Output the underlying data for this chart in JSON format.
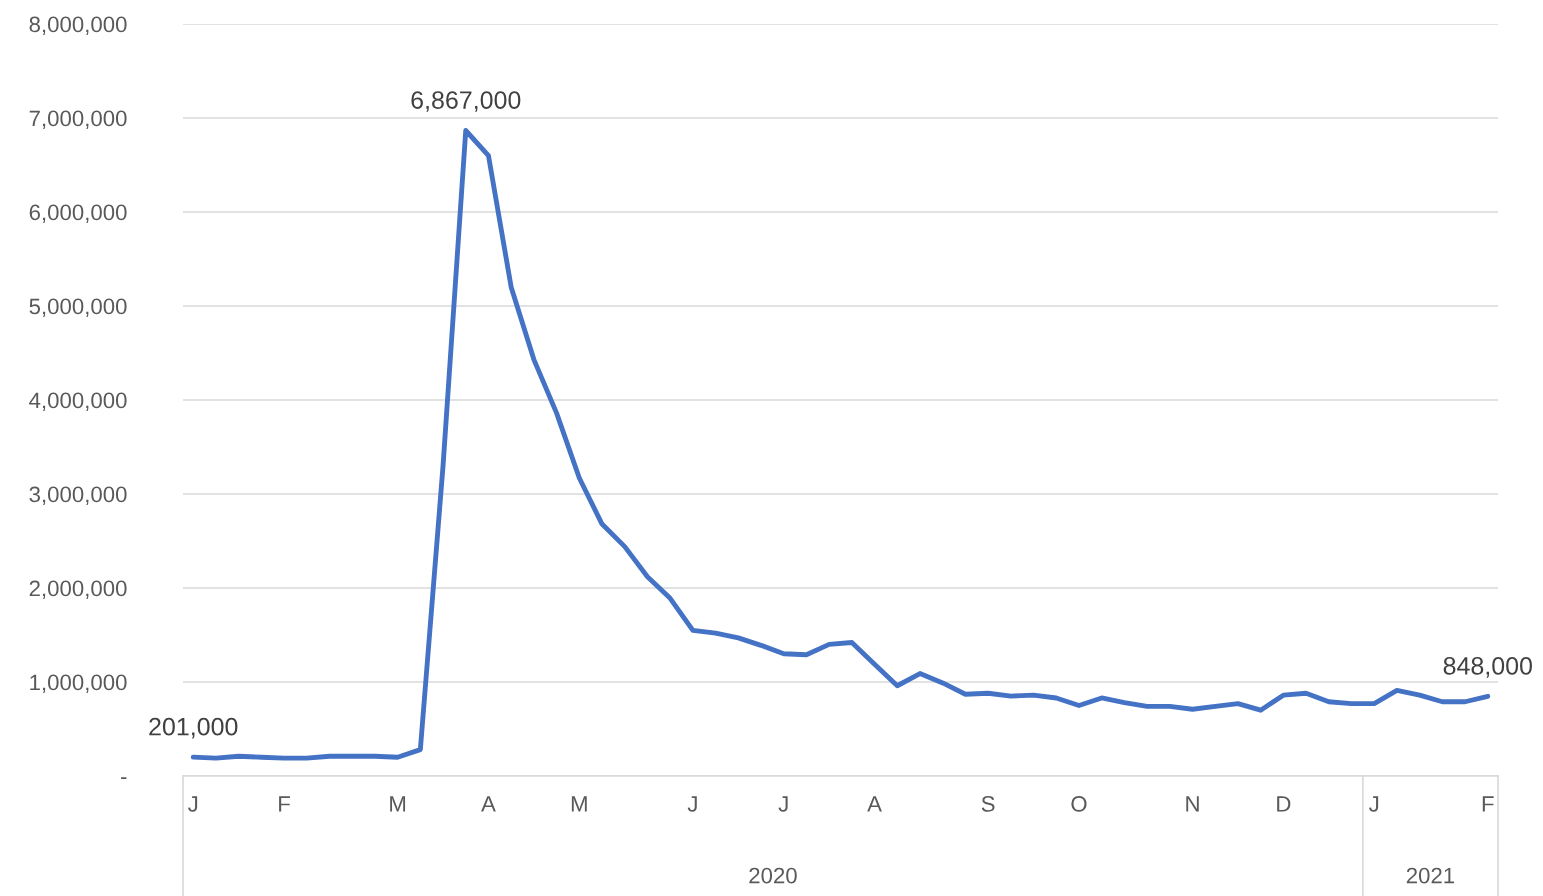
{
  "chart_data": {
    "type": "line",
    "color": "#4472c4",
    "categories": [
      "J",
      null,
      null,
      null,
      "F",
      null,
      null,
      null,
      null,
      "M",
      null,
      null,
      null,
      "A",
      null,
      null,
      null,
      "M",
      null,
      null,
      null,
      null,
      "J",
      null,
      null,
      null,
      "J",
      null,
      null,
      null,
      "A",
      null,
      null,
      null,
      null,
      "S",
      null,
      null,
      null,
      "O",
      null,
      null,
      null,
      null,
      "N",
      null,
      null,
      null,
      "D",
      null,
      null,
      null,
      "J",
      null,
      null,
      null,
      null,
      "F"
    ],
    "values": [
      201000,
      190000,
      210000,
      200000,
      190000,
      190000,
      210000,
      210000,
      210000,
      200000,
      280000,
      3300000,
      6867000,
      6600000,
      5200000,
      4430000,
      3860000,
      3170000,
      2680000,
      2440000,
      2120000,
      1890000,
      1550000,
      1520000,
      1470000,
      1390000,
      1300000,
      1290000,
      1400000,
      1420000,
      1190000,
      960000,
      1090000,
      990000,
      870000,
      880000,
      850000,
      860000,
      830000,
      750000,
      830000,
      780000,
      740000,
      740000,
      710000,
      740000,
      770000,
      700000,
      860000,
      880000,
      790000,
      770000,
      770000,
      910000,
      860000,
      790000,
      790000,
      848000
    ],
    "value_labels": [
      "201,000",
      null,
      null,
      null,
      null,
      null,
      null,
      null,
      null,
      null,
      null,
      null,
      "6,867,000",
      null,
      null,
      null,
      null,
      null,
      null,
      null,
      null,
      null,
      null,
      null,
      null,
      null,
      null,
      null,
      null,
      null,
      null,
      null,
      null,
      null,
      null,
      null,
      null,
      null,
      null,
      null,
      null,
      null,
      null,
      null,
      null,
      null,
      null,
      null,
      null,
      null,
      null,
      null,
      null,
      null,
      null,
      null,
      null,
      "848,000"
    ],
    "ylim": [
      0,
      8000000
    ],
    "yticks": [
      {
        "value": 0,
        "label": "-"
      },
      {
        "value": 1000000,
        "label": "1,000,000"
      },
      {
        "value": 2000000,
        "label": "2,000,000"
      },
      {
        "value": 3000000,
        "label": "3,000,000"
      },
      {
        "value": 4000000,
        "label": "4,000,000"
      },
      {
        "value": 5000000,
        "label": "5,000,000"
      },
      {
        "value": 6000000,
        "label": "6,000,000"
      },
      {
        "value": 7000000,
        "label": "7,000,000"
      },
      {
        "value": 8000000,
        "label": "8,000,000"
      }
    ],
    "annotations": [
      "2020",
      "2021"
    ],
    "grid": "y",
    "legend": false,
    "marker": "none",
    "line_style": "solid"
  }
}
